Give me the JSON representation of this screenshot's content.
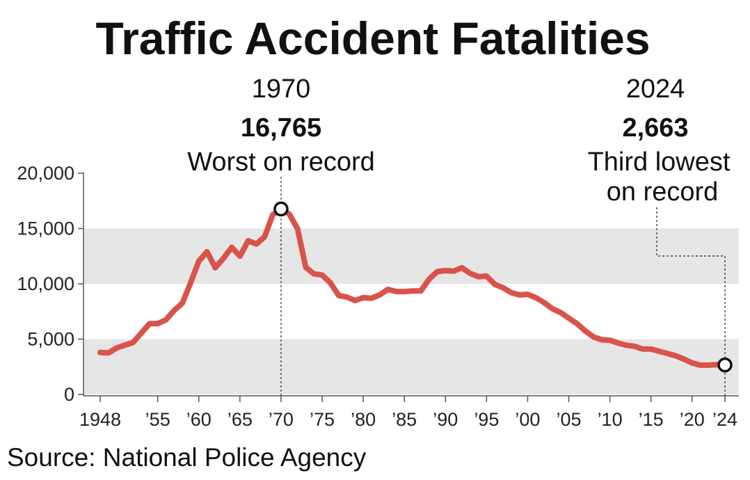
{
  "chart_data": {
    "type": "line",
    "title": "Traffic Accident Fatalities",
    "source": "Source: National Police Agency",
    "ylim": [
      0,
      20000
    ],
    "xlim": [
      1948,
      2024
    ],
    "yticks": [
      {
        "value": 20000,
        "label": "20,000"
      },
      {
        "value": 15000,
        "label": "15,000"
      },
      {
        "value": 10000,
        "label": "10,000"
      },
      {
        "value": 5000,
        "label": "5,000"
      },
      {
        "value": 0,
        "label": "0"
      }
    ],
    "xticks": [
      {
        "value": 1948,
        "label": "1948"
      },
      {
        "value": 1955,
        "label": "’55"
      },
      {
        "value": 1960,
        "label": "’60"
      },
      {
        "value": 1965,
        "label": "’65"
      },
      {
        "value": 1970,
        "label": "’70"
      },
      {
        "value": 1975,
        "label": "’75"
      },
      {
        "value": 1980,
        "label": "’80"
      },
      {
        "value": 1985,
        "label": "’85"
      },
      {
        "value": 1990,
        "label": "’90"
      },
      {
        "value": 1995,
        "label": "’95"
      },
      {
        "value": 2000,
        "label": "’00"
      },
      {
        "value": 2005,
        "label": "’05"
      },
      {
        "value": 2010,
        "label": "’10"
      },
      {
        "value": 2015,
        "label": "’15"
      },
      {
        "value": 2020,
        "label": "’20"
      },
      {
        "value": 2024,
        "label": "’24"
      }
    ],
    "bands": [
      [
        5000,
        0
      ],
      [
        15000,
        10000
      ]
    ],
    "band_color": "#e6e6e6",
    "line_color": "#d9534a",
    "series": [
      {
        "name": "Fatalities",
        "x": [
          1948,
          1949,
          1950,
          1951,
          1952,
          1953,
          1954,
          1955,
          1956,
          1957,
          1958,
          1959,
          1960,
          1961,
          1962,
          1963,
          1964,
          1965,
          1966,
          1967,
          1968,
          1969,
          1970,
          1971,
          1972,
          1973,
          1974,
          1975,
          1976,
          1977,
          1978,
          1979,
          1980,
          1981,
          1982,
          1983,
          1984,
          1985,
          1986,
          1987,
          1988,
          1989,
          1990,
          1991,
          1992,
          1993,
          1994,
          1995,
          1996,
          1997,
          1998,
          1999,
          2000,
          2001,
          2002,
          2003,
          2004,
          2005,
          2006,
          2007,
          2008,
          2009,
          2010,
          2011,
          2012,
          2013,
          2014,
          2015,
          2016,
          2017,
          2018,
          2019,
          2020,
          2021,
          2022,
          2023,
          2024
        ],
        "y": [
          3800,
          3750,
          4200,
          4450,
          4700,
          5550,
          6400,
          6400,
          6750,
          7600,
          8250,
          10100,
          12050,
          12900,
          11450,
          12300,
          13300,
          12500,
          13900,
          13600,
          14250,
          16250,
          16765,
          16300,
          15000,
          11500,
          10900,
          10800,
          10100,
          8950,
          8800,
          8500,
          8750,
          8700,
          9000,
          9500,
          9300,
          9300,
          9350,
          9350,
          10400,
          11100,
          11200,
          11150,
          11450,
          10950,
          10650,
          10700,
          9950,
          9650,
          9200,
          9000,
          9050,
          8750,
          8300,
          7750,
          7400,
          6900,
          6400,
          5750,
          5200,
          4950,
          4900,
          4650,
          4450,
          4350,
          4100,
          4100,
          3900,
          3700,
          3500,
          3200,
          2850,
          2650,
          2650,
          2700,
          2663
        ]
      }
    ],
    "annotations": [
      {
        "x": 1970,
        "y": 16765,
        "year": "1970",
        "value": "16,765",
        "text": "Worst on record"
      },
      {
        "x": 2024,
        "y": 2663,
        "year": "2024",
        "value": "2,663",
        "text": [
          "Third lowest",
          "on record"
        ]
      }
    ]
  }
}
